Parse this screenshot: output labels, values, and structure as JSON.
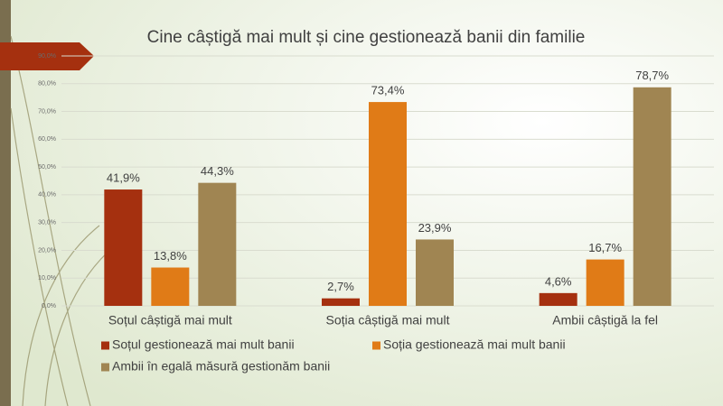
{
  "chart_data": {
    "type": "bar",
    "title": "Cine câștigă mai mult și cine gestionează banii din familie",
    "categories": [
      "Soțul câștigă mai mult",
      "Soția câștigă mai mult",
      "Ambii câștigă la fel"
    ],
    "series": [
      {
        "name": "Soțul gestionează mai mult banii",
        "color": "#a5300f",
        "values": [
          41.9,
          2.7,
          4.6
        ],
        "value_labels": [
          "41,9%",
          "2,7%",
          "4,6%"
        ]
      },
      {
        "name": "Soția gestionează mai mult banii",
        "color": "#e07b17",
        "values": [
          13.8,
          73.4,
          16.7
        ],
        "value_labels": [
          "13,8%",
          "73,4%",
          "16,7%"
        ]
      },
      {
        "name": "Ambii în egală măsură gestionăm banii",
        "color": "#a08552",
        "values": [
          44.3,
          23.9,
          78.7
        ],
        "value_labels": [
          "44,3%",
          "23,9%",
          "78,7%"
        ]
      }
    ],
    "ylim": [
      0,
      90
    ],
    "yticks": [
      {
        "value": 0,
        "label": "0,0%"
      },
      {
        "value": 10,
        "label": "10,0%"
      },
      {
        "value": 20,
        "label": "20,0%"
      },
      {
        "value": 30,
        "label": "30,0%"
      },
      {
        "value": 40,
        "label": "40,0%"
      },
      {
        "value": 50,
        "label": "50,0%"
      },
      {
        "value": 60,
        "label": "60,0%"
      },
      {
        "value": 70,
        "label": "70,0%"
      },
      {
        "value": 80,
        "label": "80,0%"
      },
      {
        "value": 90,
        "label": "90,0%"
      }
    ],
    "grid": true
  }
}
